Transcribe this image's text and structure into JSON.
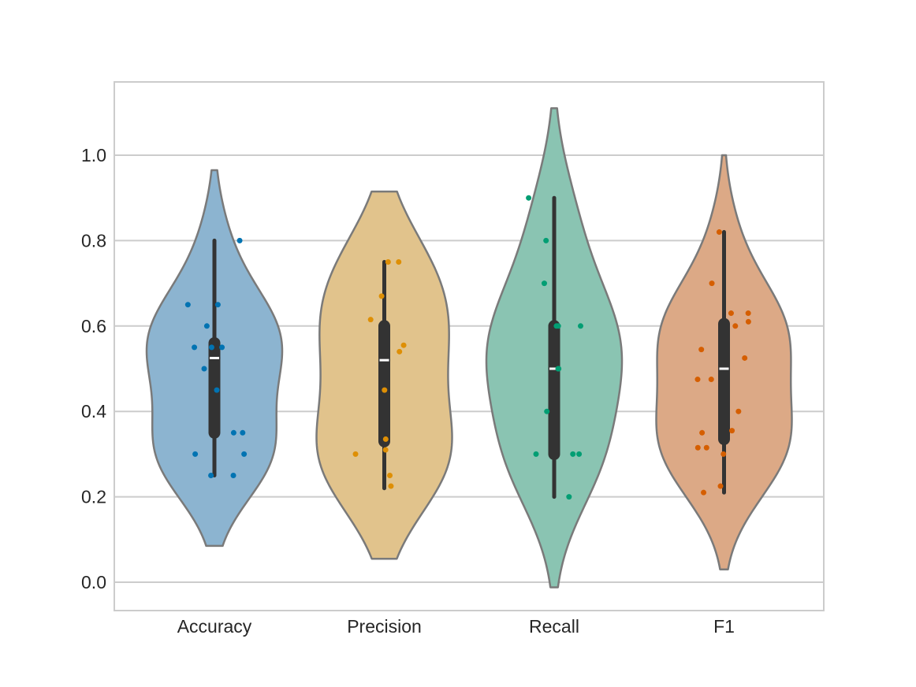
{
  "chart_data": {
    "type": "violin",
    "title": "",
    "xlabel": "",
    "ylabel": "",
    "ylim": [
      -0.067,
      1.167
    ],
    "grid": true,
    "yticks": [
      {
        "value": 0.0,
        "label": "0.0"
      },
      {
        "value": 0.2,
        "label": "0.2"
      },
      {
        "value": 0.4,
        "label": "0.4"
      },
      {
        "value": 0.6,
        "label": "0.6"
      },
      {
        "value": 0.8,
        "label": "0.8"
      },
      {
        "value": 1.0,
        "label": "1.0"
      }
    ],
    "categories": [
      "Accuracy",
      "Precision",
      "Recall",
      "F1"
    ],
    "series": [
      {
        "category": "Accuracy",
        "fill_color": "#8cb4d0",
        "point_color": "#0173b2",
        "kde_range": [
          0.085,
          0.965
        ],
        "median": 0.525,
        "q1": 0.35,
        "q3": 0.56,
        "whisker_low": 0.25,
        "whisker_high": 0.8,
        "points": [
          0.8,
          0.65,
          0.65,
          0.6,
          0.55,
          0.55,
          0.55,
          0.5,
          0.45,
          0.35,
          0.35,
          0.3,
          0.3,
          0.25,
          0.25
        ]
      },
      {
        "category": "Precision",
        "fill_color": "#e1c38c",
        "point_color": "#de8f05",
        "kde_range": [
          0.055,
          0.915
        ],
        "median": 0.52,
        "q1": 0.33,
        "q3": 0.6,
        "whisker_low": 0.22,
        "whisker_high": 0.75,
        "points": [
          0.75,
          0.75,
          0.67,
          0.615,
          0.555,
          0.54,
          0.45,
          0.335,
          0.31,
          0.3,
          0.25,
          0.225
        ]
      },
      {
        "category": "Recall",
        "fill_color": "#8ac4b2",
        "point_color": "#029e73",
        "kde_range": [
          -0.012,
          1.11
        ],
        "median": 0.5,
        "q1": 0.3,
        "q3": 0.6,
        "whisker_low": 0.2,
        "whisker_high": 0.9,
        "points": [
          0.9,
          0.8,
          0.7,
          0.6,
          0.6,
          0.6,
          0.5,
          0.5,
          0.5,
          0.4,
          0.3,
          0.3,
          0.3,
          0.2
        ]
      },
      {
        "category": "F1",
        "fill_color": "#dca986",
        "point_color": "#d55e00",
        "kde_range": [
          0.03,
          1.0
        ],
        "median": 0.5,
        "q1": 0.335,
        "q3": 0.605,
        "whisker_low": 0.21,
        "whisker_high": 0.82,
        "points": [
          0.82,
          0.7,
          0.63,
          0.63,
          0.61,
          0.6,
          0.545,
          0.525,
          0.475,
          0.475,
          0.4,
          0.355,
          0.35,
          0.315,
          0.315,
          0.3,
          0.225,
          0.21
        ]
      }
    ]
  }
}
